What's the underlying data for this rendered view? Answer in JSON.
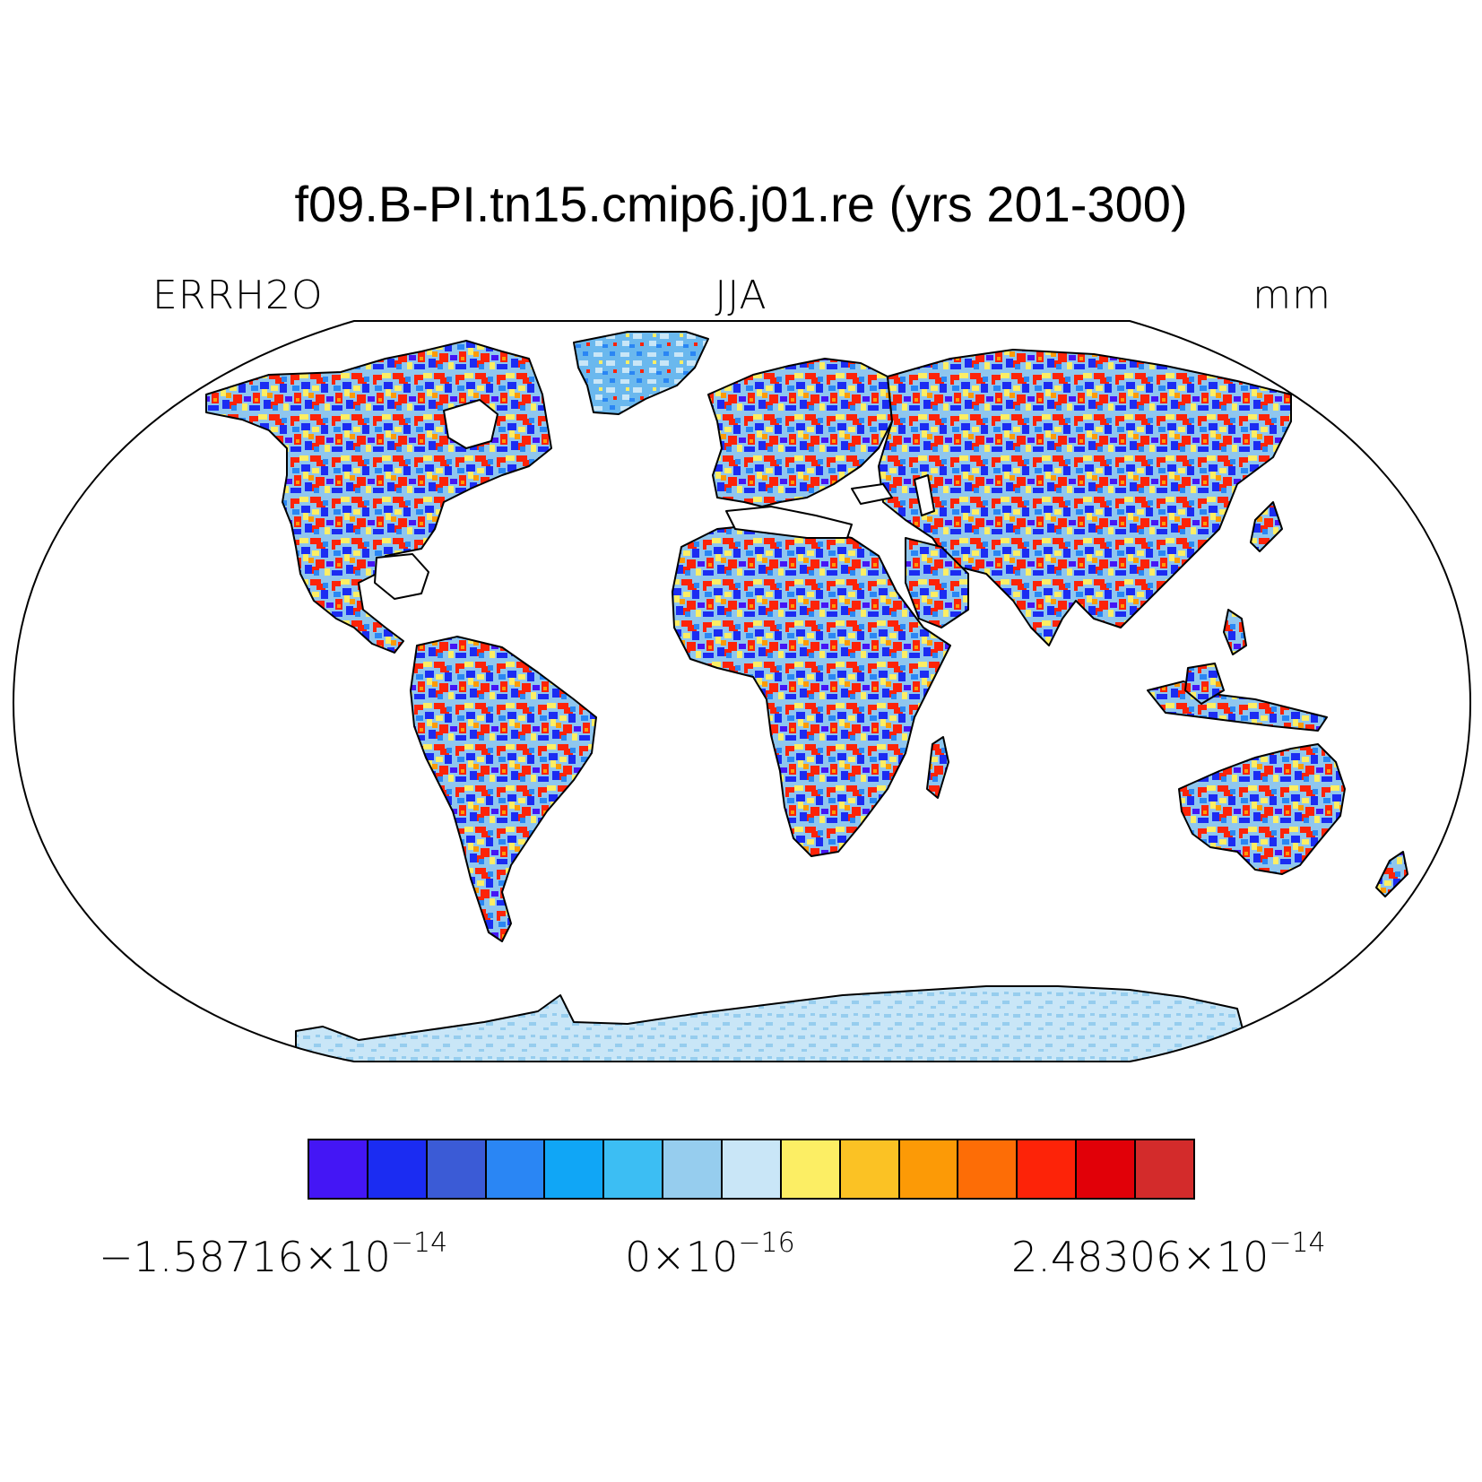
{
  "title": "f09.B-PI.tn15.cmip6.j01.re (yrs 201-300)",
  "left_label": "ERRH2O",
  "center_label": "JJA",
  "right_label": "mm",
  "colorbar": {
    "colors": [
      "#4416f5",
      "#1b2cf2",
      "#3b5bd6",
      "#2a86f4",
      "#10a6f6",
      "#3cbef3",
      "#96cdee",
      "#c9e6f7",
      "#fcee64",
      "#fbc224",
      "#fc9a06",
      "#fd6d06",
      "#fd2308",
      "#e10008",
      "#d32b2b"
    ],
    "min_mantissa": "−1.58716×10",
    "min_exp": "−14",
    "mid_mantissa": "0×10",
    "mid_exp": "−16",
    "max_mantissa": "2.48306×10",
    "max_exp": "−14"
  }
}
